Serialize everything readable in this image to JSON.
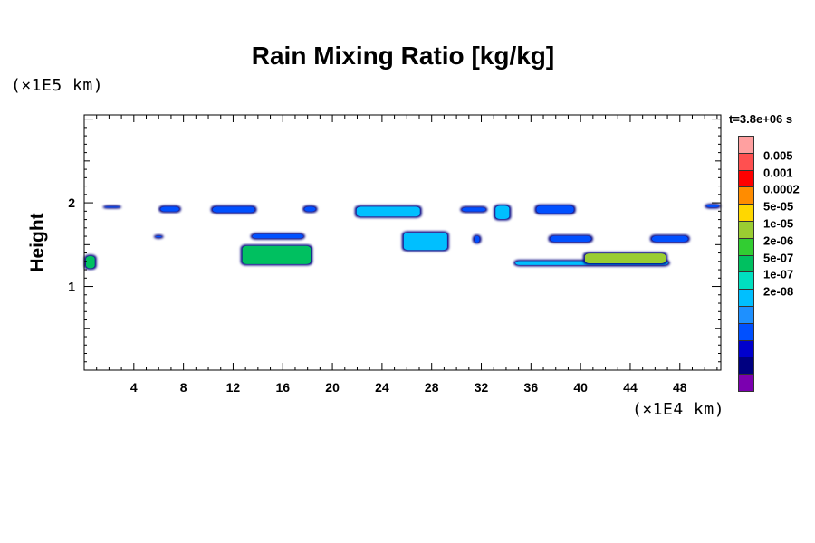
{
  "chart_data": {
    "type": "heatmap",
    "title": "Rain Mixing Ratio [kg/kg]",
    "ylabel": "Height",
    "y_unit_label": "(×1E5 km)",
    "x_unit_label": "(×1E4 km)",
    "time_label": "t=3.8e+06 s",
    "xlim": [
      0,
      51.3
    ],
    "ylim": [
      0,
      3.05
    ],
    "x_ticks": [
      4,
      8,
      12,
      16,
      20,
      24,
      28,
      32,
      36,
      40,
      44,
      48
    ],
    "y_ticks": [
      1,
      2
    ],
    "colorbar": {
      "labels": [
        "0.005",
        "0.001",
        "0.0002",
        "5e-05",
        "1e-05",
        "2e-06",
        "5e-07",
        "1e-07",
        "2e-08"
      ],
      "colors": [
        "#ffa0a0",
        "#ff5050",
        "#ff0000",
        "#ff8c00",
        "#ffd700",
        "#9acd32",
        "#32cd32",
        "#00c060",
        "#00e0c0",
        "#00bfff",
        "#1e90ff",
        "#0050ff",
        "#0000cd",
        "#000080",
        "#7b00b0"
      ]
    },
    "regions": [
      {
        "x": [
          0.0,
          1.0
        ],
        "y": [
          1.2,
          1.38
        ],
        "level": "2e-06"
      },
      {
        "x": [
          1.5,
          3.0
        ],
        "y": [
          1.93,
          1.97
        ],
        "level": "1e-07"
      },
      {
        "x": [
          6.0,
          7.8
        ],
        "y": [
          1.88,
          1.97
        ],
        "level": "1e-07"
      },
      {
        "x": [
          5.6,
          6.4
        ],
        "y": [
          1.57,
          1.62
        ],
        "level": "1e-07"
      },
      {
        "x": [
          10.2,
          13.9
        ],
        "y": [
          1.87,
          1.97
        ],
        "level": "1e-07"
      },
      {
        "x": [
          13.4,
          17.8
        ],
        "y": [
          1.56,
          1.64
        ],
        "level": "1e-07"
      },
      {
        "x": [
          17.6,
          18.8
        ],
        "y": [
          1.88,
          1.97
        ],
        "level": "1e-07"
      },
      {
        "x": [
          12.6,
          18.4
        ],
        "y": [
          1.25,
          1.5
        ],
        "level": "2e-06"
      },
      {
        "x": [
          21.8,
          27.2
        ],
        "y": [
          1.82,
          1.97
        ],
        "level": "5e-07"
      },
      {
        "x": [
          25.6,
          29.4
        ],
        "y": [
          1.42,
          1.66
        ],
        "level": "5e-07"
      },
      {
        "x": [
          30.3,
          32.5
        ],
        "y": [
          1.88,
          1.96
        ],
        "level": "1e-07"
      },
      {
        "x": [
          31.3,
          32.0
        ],
        "y": [
          1.51,
          1.62
        ],
        "level": "1e-07"
      },
      {
        "x": [
          33.0,
          34.4
        ],
        "y": [
          1.79,
          1.98
        ],
        "level": "5e-07"
      },
      {
        "x": [
          36.3,
          39.6
        ],
        "y": [
          1.86,
          1.98
        ],
        "level": "1e-07"
      },
      {
        "x": [
          37.4,
          41.0
        ],
        "y": [
          1.52,
          1.62
        ],
        "level": "1e-07"
      },
      {
        "x": [
          34.6,
          47.2
        ],
        "y": [
          1.24,
          1.32
        ],
        "level": "5e-07"
      },
      {
        "x": [
          40.2,
          47.0
        ],
        "y": [
          1.26,
          1.41
        ],
        "level": "1e-05"
      },
      {
        "x": [
          45.6,
          48.8
        ],
        "y": [
          1.52,
          1.62
        ],
        "level": "1e-07"
      },
      {
        "x": [
          50.0,
          51.3
        ],
        "y": [
          1.93,
          1.99
        ],
        "level": "1e-07"
      }
    ]
  }
}
